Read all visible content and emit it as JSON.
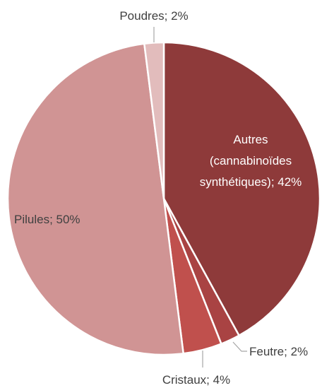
{
  "chart_data": {
    "type": "pie",
    "labels": [
      "Autres\n(cannabinoïdes\nsynthétiques); 42%",
      "Feutre; 2%",
      "Cristaux; 4%",
      "Pilules; 50%",
      "Poudres; 2%"
    ],
    "values": [
      42,
      2,
      4,
      50,
      2
    ],
    "colors": [
      "#8e3a3a",
      "#a94343",
      "#c0504d",
      "#d09494",
      "#e2bcbc"
    ]
  }
}
